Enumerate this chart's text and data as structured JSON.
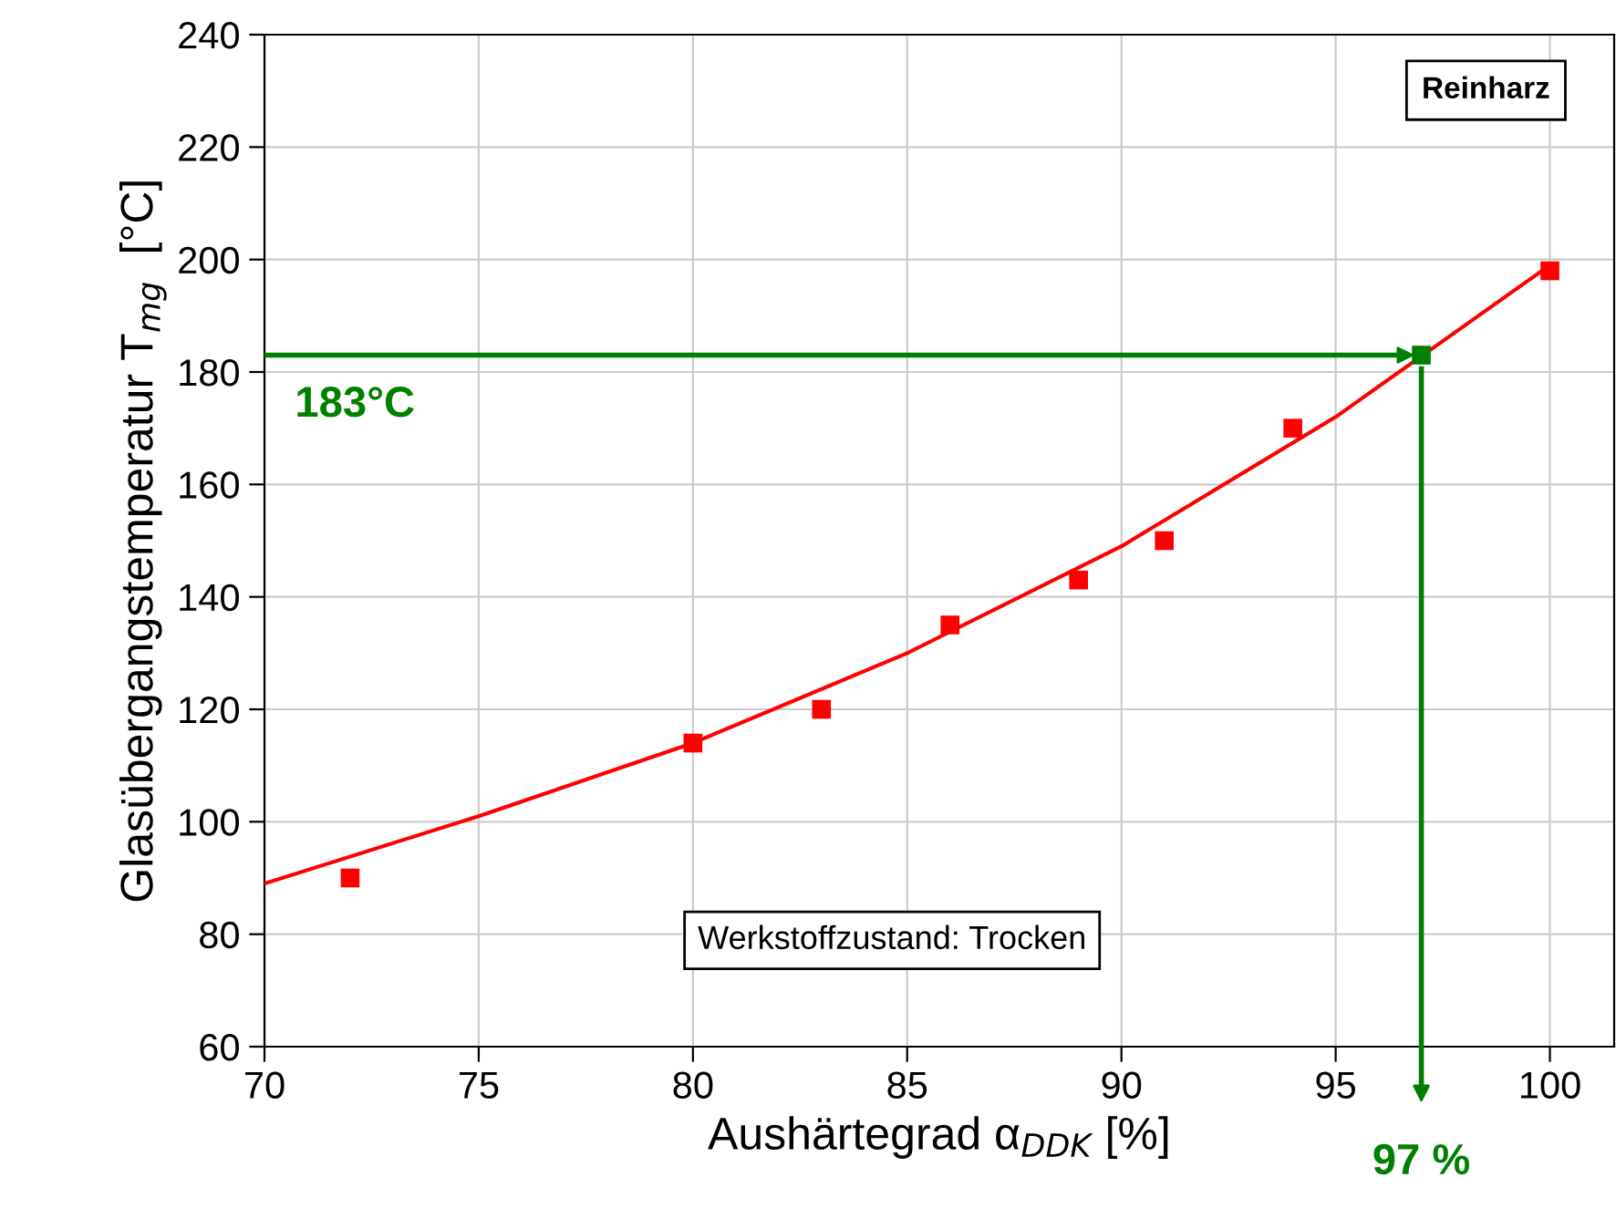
{
  "chart_data": {
    "type": "scatter",
    "xlabel": "Aushärtegrad α$_{DDK}$ [%]",
    "ylabel": "Glasübergangstemperatur T$_{mg}$  [°C]",
    "xlim": [
      70,
      101.5
    ],
    "xticks": [
      70,
      75,
      80,
      85,
      90,
      95,
      100
    ],
    "ylim": [
      60,
      240
    ],
    "yticks": [
      60,
      80,
      100,
      120,
      140,
      160,
      180,
      200,
      220,
      240
    ],
    "grid": true,
    "marker": "square",
    "series": [
      {
        "color": "#ff0000",
        "x": [
          72,
          80,
          83,
          86,
          89,
          91,
          94,
          100
        ],
        "values": [
          90,
          114,
          120,
          135,
          143,
          150,
          170,
          198
        ]
      },
      {
        "color": "#008000",
        "x": [
          97
        ],
        "values": [
          183
        ]
      },
      {
        "type": "line",
        "color": "#ff0000",
        "marker": "none",
        "x": [
          70,
          75,
          80,
          85,
          90,
          95,
          100
        ],
        "values": [
          89,
          101,
          114,
          130,
          149,
          172,
          199
        ]
      }
    ],
    "ref_lines": [
      {
        "axis": "y",
        "value": 183,
        "label": "183°C",
        "color": "#008000"
      },
      {
        "axis": "x",
        "value": 97,
        "label": "97 %",
        "color": "#008000"
      }
    ],
    "annotations": [
      "Reinharz",
      "Werkstoffzustand: Trocken"
    ]
  }
}
